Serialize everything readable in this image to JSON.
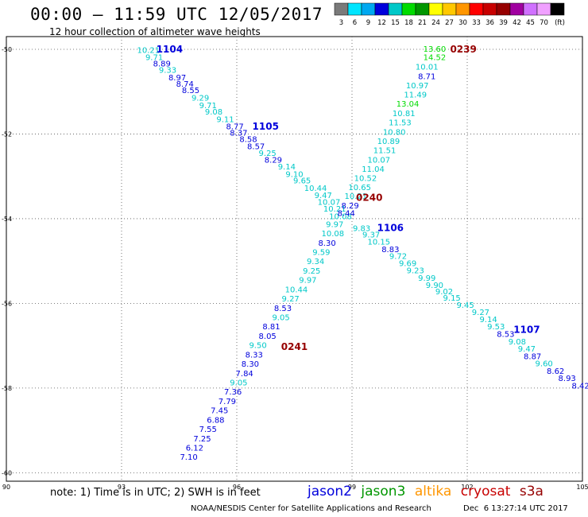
{
  "header": {
    "title": "00:00 – 11:59 UTC 12/05/2017",
    "subtitle": "12 hour collection of altimeter wave heights"
  },
  "colorbar": {
    "labels": [
      "3",
      "6",
      "9",
      "12",
      "15",
      "18",
      "21",
      "24",
      "27",
      "30",
      "33",
      "36",
      "39",
      "42",
      "45",
      "70",
      "(ft)"
    ],
    "colors": [
      "#7a7a7a",
      "#00e5ff",
      "#00a8f0",
      "#0000dc",
      "#00c8c8",
      "#00dc00",
      "#009600",
      "#ffff00",
      "#ffc800",
      "#ff9600",
      "#ff0000",
      "#c80000",
      "#960000",
      "#a000a0",
      "#d070ff",
      "#f0a0ff",
      "#000000"
    ]
  },
  "footer": {
    "note": "note: 1) Time is in UTC; 2) SWH is in feet",
    "credit": "NOAA/NESDIS Center for Satellite Applications and Research",
    "timestamp": "Dec  6 13:27:14 UTC 2017"
  },
  "legend": [
    {
      "label": "jason2",
      "color": "#0000dc"
    },
    {
      "label": "jason3",
      "color": "#009600"
    },
    {
      "label": "altika",
      "color": "#ff9600"
    },
    {
      "label": "cryosat",
      "color": "#c80000"
    },
    {
      "label": "s3a",
      "color": "#960000"
    }
  ],
  "chart_data": {
    "type": "scatter",
    "title": "12 hour collection of altimeter wave heights",
    "xlabel": "",
    "ylabel": "",
    "xlim": [
      90,
      105
    ],
    "ylim": [
      -60.2,
      -49.7
    ],
    "xticks": [
      90,
      93,
      96,
      99,
      102,
      105
    ],
    "yticks": [
      -50,
      -52,
      -54,
      -56,
      -58,
      -60
    ],
    "grid": true,
    "color_scale_ft": {
      "bounds": [
        3,
        6,
        9,
        12,
        15
      ],
      "colors": [
        "#7a7a7a",
        "#00a8f0",
        "#0000dc",
        "#00c8c8",
        "#00dc00"
      ]
    },
    "pass_labels": [
      {
        "label": "1104",
        "x": 94.25,
        "y": -50.0,
        "color": "#0000dc"
      },
      {
        "label": "1105",
        "x": 96.75,
        "y": -51.82,
        "color": "#0000dc"
      },
      {
        "label": "1106",
        "x": 100.0,
        "y": -54.22,
        "color": "#0000dc"
      },
      {
        "label": "1107",
        "x": 103.55,
        "y": -56.62,
        "color": "#0000dc"
      },
      {
        "label": "0239",
        "x": 101.9,
        "y": -50.0,
        "color": "#960000"
      },
      {
        "label": "0240",
        "x": 99.45,
        "y": -53.5,
        "color": "#960000"
      },
      {
        "label": "0241",
        "x": 97.5,
        "y": -57.03,
        "color": "#960000"
      }
    ],
    "series": [
      {
        "name": "1104",
        "points": [
          {
            "x": 93.7,
            "y": -50.03,
            "v": 10.21
          },
          {
            "x": 93.85,
            "y": -50.2,
            "v": 9.71
          },
          {
            "x": 94.05,
            "y": -50.35,
            "v": 8.89
          },
          {
            "x": 94.2,
            "y": -50.5,
            "v": 9.33
          },
          {
            "x": 94.45,
            "y": -50.68,
            "v": 8.97
          },
          {
            "x": 94.65,
            "y": -50.83,
            "v": 8.74
          },
          {
            "x": 94.8,
            "y": -50.98,
            "v": 8.55
          },
          {
            "x": 95.05,
            "y": -51.16,
            "v": 9.29
          },
          {
            "x": 95.25,
            "y": -51.33,
            "v": 9.71
          },
          {
            "x": 95.4,
            "y": -51.48,
            "v": 9.08
          },
          {
            "x": 95.7,
            "y": -51.66,
            "v": 9.11
          },
          {
            "x": 95.95,
            "y": -51.83,
            "v": 8.77
          },
          {
            "x": 96.05,
            "y": -51.98,
            "v": 8.37
          },
          {
            "x": 96.3,
            "y": -52.13,
            "v": 8.58
          },
          {
            "x": 96.5,
            "y": -52.3,
            "v": 8.57
          },
          {
            "x": 96.8,
            "y": -52.46,
            "v": 9.25
          },
          {
            "x": 96.95,
            "y": -52.62,
            "v": 8.29
          },
          {
            "x": 97.3,
            "y": -52.78,
            "v": 9.14
          },
          {
            "x": 97.5,
            "y": -52.96,
            "v": 9.1
          },
          {
            "x": 97.7,
            "y": -53.11,
            "v": 9.65
          },
          {
            "x": 98.05,
            "y": -53.29,
            "v": 10.44
          },
          {
            "x": 98.25,
            "y": -53.46,
            "v": 9.47
          },
          {
            "x": 98.4,
            "y": -53.62,
            "v": 10.07
          },
          {
            "x": 98.55,
            "y": -53.78,
            "v": 10.21
          },
          {
            "x": 98.7,
            "y": -53.95,
            "v": 10.08
          },
          {
            "x": 99.25,
            "y": -54.24,
            "v": 9.83
          },
          {
            "x": 99.5,
            "y": -54.39,
            "v": 9.37
          },
          {
            "x": 99.7,
            "y": -54.56,
            "v": 10.15
          },
          {
            "x": 100.0,
            "y": -54.73,
            "v": 8.83
          },
          {
            "x": 100.2,
            "y": -54.89,
            "v": 9.72
          },
          {
            "x": 100.45,
            "y": -55.06,
            "v": 9.69
          },
          {
            "x": 100.65,
            "y": -55.23,
            "v": 9.23
          },
          {
            "x": 100.95,
            "y": -55.41,
            "v": 9.99
          },
          {
            "x": 101.15,
            "y": -55.58,
            "v": 9.9
          },
          {
            "x": 101.4,
            "y": -55.73,
            "v": 9.02
          },
          {
            "x": 101.6,
            "y": -55.88,
            "v": 9.15
          },
          {
            "x": 101.95,
            "y": -56.05,
            "v": 9.45
          },
          {
            "x": 102.35,
            "y": -56.22,
            "v": 9.27
          },
          {
            "x": 102.55,
            "y": -56.39,
            "v": 9.14
          },
          {
            "x": 102.75,
            "y": -56.56,
            "v": 9.53
          },
          {
            "x": 103.0,
            "y": -56.73,
            "v": 8.53
          },
          {
            "x": 103.3,
            "y": -56.91,
            "v": 9.08
          },
          {
            "x": 103.55,
            "y": -57.08,
            "v": 9.47
          },
          {
            "x": 103.7,
            "y": -57.26,
            "v": 8.87
          },
          {
            "x": 104.0,
            "y": -57.43,
            "v": 9.6
          },
          {
            "x": 104.3,
            "y": -57.61,
            "v": 8.62
          },
          {
            "x": 104.6,
            "y": -57.78,
            "v": 8.93
          },
          {
            "x": 104.95,
            "y": -57.96,
            "v": 8.42
          }
        ]
      },
      {
        "name": "0239",
        "points": [
          {
            "x": 101.15,
            "y": -50.0,
            "v": 13.6
          },
          {
            "x": 101.15,
            "y": -50.2,
            "v": 14.52
          },
          {
            "x": 100.95,
            "y": -50.42,
            "v": 10.01
          },
          {
            "x": 100.95,
            "y": -50.65,
            "v": 8.71
          },
          {
            "x": 100.7,
            "y": -50.86,
            "v": 10.97
          },
          {
            "x": 100.65,
            "y": -51.08,
            "v": 11.49
          },
          {
            "x": 100.45,
            "y": -51.3,
            "v": 13.04
          },
          {
            "x": 100.35,
            "y": -51.52,
            "v": 10.81
          },
          {
            "x": 100.25,
            "y": -51.74,
            "v": 11.53
          },
          {
            "x": 100.1,
            "y": -51.96,
            "v": 10.8
          },
          {
            "x": 99.95,
            "y": -52.18,
            "v": 10.89
          },
          {
            "x": 99.85,
            "y": -52.4,
            "v": 11.51
          },
          {
            "x": 99.7,
            "y": -52.62,
            "v": 10.07
          },
          {
            "x": 99.55,
            "y": -52.84,
            "v": 11.04
          },
          {
            "x": 99.35,
            "y": -53.05,
            "v": 10.52
          },
          {
            "x": 99.2,
            "y": -53.27,
            "v": 10.65
          },
          {
            "x": 99.1,
            "y": -53.48,
            "v": 10.21
          },
          {
            "x": 98.95,
            "y": -53.7,
            "v": 8.29
          },
          {
            "x": 98.85,
            "y": -53.88,
            "v": 8.44
          },
          {
            "x": 98.55,
            "y": -54.14,
            "v": 9.97
          },
          {
            "x": 98.5,
            "y": -54.36,
            "v": 10.08
          },
          {
            "x": 98.35,
            "y": -54.58,
            "v": 8.3
          },
          {
            "x": 98.2,
            "y": -54.8,
            "v": 9.59
          },
          {
            "x": 98.05,
            "y": -55.02,
            "v": 9.34
          },
          {
            "x": 97.95,
            "y": -55.24,
            "v": 9.25
          },
          {
            "x": 97.85,
            "y": -55.46,
            "v": 9.97
          },
          {
            "x": 97.55,
            "y": -55.68,
            "v": 10.44
          },
          {
            "x": 97.4,
            "y": -55.9,
            "v": 9.27
          },
          {
            "x": 97.2,
            "y": -56.12,
            "v": 8.53
          },
          {
            "x": 97.15,
            "y": -56.34,
            "v": 9.05
          },
          {
            "x": 96.9,
            "y": -56.56,
            "v": 8.81
          },
          {
            "x": 96.8,
            "y": -56.78,
            "v": 8.05
          },
          {
            "x": 96.55,
            "y": -57.0,
            "v": 9.5
          },
          {
            "x": 96.45,
            "y": -57.22,
            "v": 8.33
          },
          {
            "x": 96.35,
            "y": -57.44,
            "v": 8.3
          },
          {
            "x": 96.2,
            "y": -57.66,
            "v": 7.84
          },
          {
            "x": 96.05,
            "y": -57.88,
            "v": 9.05
          },
          {
            "x": 95.9,
            "y": -58.1,
            "v": 7.36
          },
          {
            "x": 95.75,
            "y": -58.32,
            "v": 7.79
          },
          {
            "x": 95.55,
            "y": -58.54,
            "v": 7.45
          },
          {
            "x": 95.45,
            "y": -58.76,
            "v": 6.88
          },
          {
            "x": 95.25,
            "y": -58.98,
            "v": 7.55
          },
          {
            "x": 95.1,
            "y": -59.2,
            "v": 7.25
          },
          {
            "x": 94.9,
            "y": -59.42,
            "v": 6.12
          },
          {
            "x": 94.75,
            "y": -59.64,
            "v": 7.1
          }
        ]
      }
    ]
  }
}
